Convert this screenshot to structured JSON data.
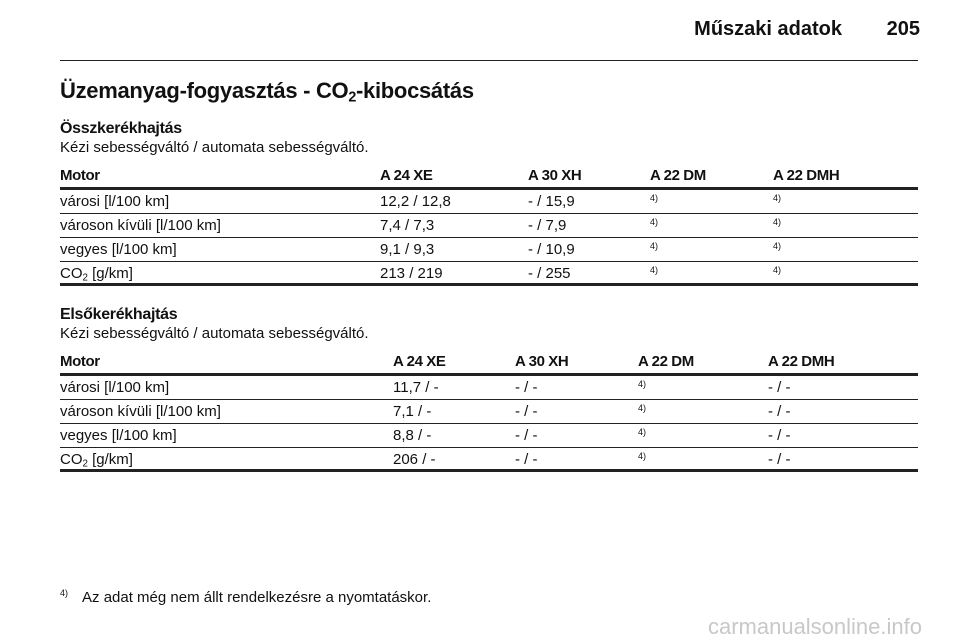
{
  "header": {
    "title": "Műszaki adatok",
    "page": "205"
  },
  "heading": {
    "text": "Üzemanyag-fogyasztás - CO",
    "sub": "2",
    "after": "-kibocsátás"
  },
  "sections": [
    {
      "title": "Összkerékhajtás",
      "subtitle": "Kézi sebességváltó / automata sebességváltó.",
      "columns": [
        "Motor",
        "A 24 XE",
        "A 30 XH",
        "A 22 DM",
        "A 22 DMH"
      ],
      "rows": [
        [
          "városi [l/100 km]",
          "12,2 / 12,8",
          "- / 15,9",
          {
            "sup": "4)"
          },
          {
            "sup": "4)"
          }
        ],
        [
          "városon kívüli [l/100 km]",
          "7,4 / 7,3",
          "- / 7,9",
          {
            "sup": "4)"
          },
          {
            "sup": "4)"
          }
        ],
        [
          "vegyes [l/100 km]",
          "9,1 / 9,3",
          "- / 10,9",
          {
            "sup": "4)"
          },
          {
            "sup": "4)"
          }
        ],
        [
          {
            "text": "CO",
            "sub": "2",
            "after": " [g/km]"
          },
          "213 / 219",
          "- / 255",
          {
            "sup": "4)"
          },
          {
            "sup": "4)"
          }
        ]
      ]
    },
    {
      "title": "Elsőkerékhajtás",
      "subtitle": "Kézi sebességváltó / automata sebességváltó.",
      "columns": [
        "Motor",
        "A 24 XE",
        "A 30 XH",
        "A 22 DM",
        "A 22 DMH"
      ],
      "rows": [
        [
          "városi [l/100 km]",
          "11,7 / -",
          "- / -",
          {
            "sup": "4)"
          },
          "- / -"
        ],
        [
          "városon kívüli [l/100 km]",
          "7,1 / -",
          "- / -",
          {
            "sup": "4)"
          },
          "- / -"
        ],
        [
          "vegyes [l/100 km]",
          "8,8 / -",
          "- / -",
          {
            "sup": "4)"
          },
          "- / -"
        ],
        [
          {
            "text": "CO",
            "sub": "2",
            "after": " [g/km]"
          },
          "206 / -",
          "- / -",
          {
            "sup": "4)"
          },
          "- / -"
        ]
      ]
    }
  ],
  "footnote": {
    "mark": "4)",
    "text": "Az adat még nem állt rendelkezésre a nyomtatáskor."
  },
  "watermark": "carmanualsonline.info"
}
